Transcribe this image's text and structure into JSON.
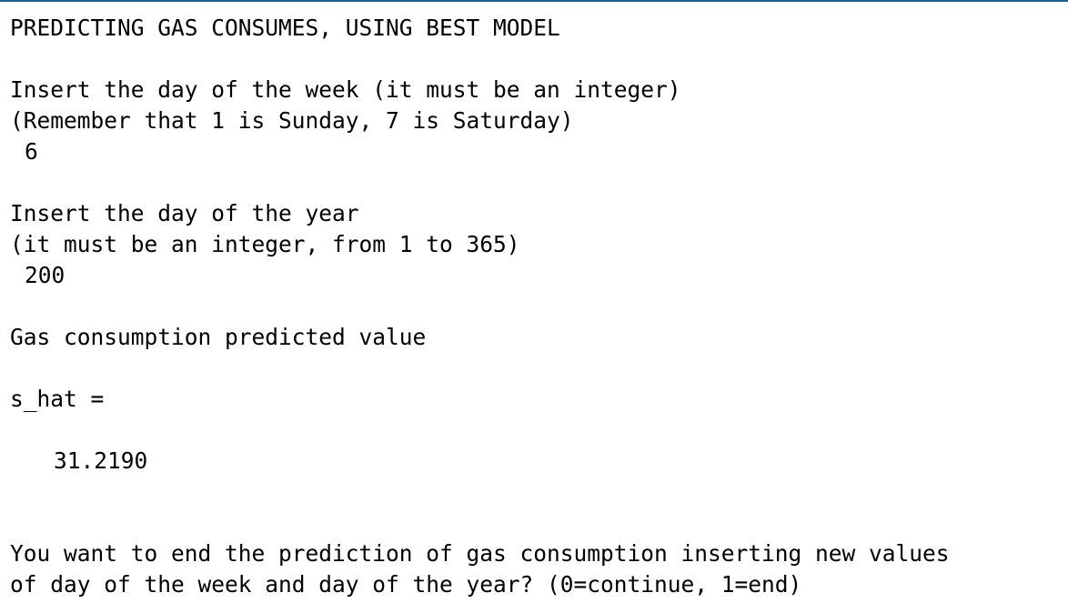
{
  "console": {
    "heading": "PREDICTING GAS CONSUMES, USING BEST MODEL",
    "week_prompt_line1": "Insert the day of the week (it must be an integer)",
    "week_prompt_line2": "(Remember that 1 is Sunday, 7 is Saturday)",
    "week_input_value": "6",
    "year_prompt_line1": "Insert the day of the year",
    "year_prompt_line2": "(it must be an integer, from 1 to 365)",
    "year_input_value": "200",
    "result_label": "Gas consumption predicted value",
    "variable_assignment": "s_hat =",
    "variable_value": "31.2190",
    "end_prompt_line1": "You want to end the prediction of gas consumption inserting new values",
    "end_prompt_line2": "of day of the week and day of the year? (0=continue, 1=end)"
  },
  "colors": {
    "background": "#ffffff",
    "text": "#000000",
    "top_border": "#1f5c99"
  }
}
